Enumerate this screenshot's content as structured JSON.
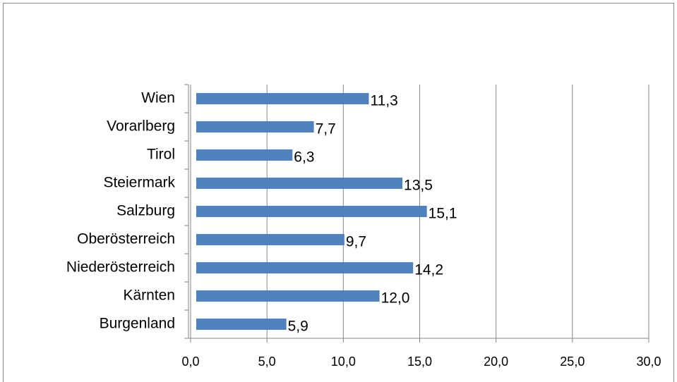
{
  "chart_data": {
    "type": "barh",
    "categories": [
      "Burgenland",
      "Kärnten",
      "Niederösterreich",
      "Oberösterreich",
      "Salzburg",
      "Steiermark",
      "Tirol",
      "Vorarlberg",
      "Wien"
    ],
    "values": [
      5.9,
      12.0,
      14.2,
      9.7,
      15.1,
      13.5,
      6.3,
      7.7,
      11.3
    ],
    "value_labels": [
      "5,9",
      "12,0",
      "14,2",
      "9,7",
      "15,1",
      "13,5",
      "6,3",
      "7,7",
      "11,3"
    ],
    "color": "#4f81bd",
    "xlim": [
      0,
      30
    ],
    "xticks": [
      {
        "value": 0,
        "label": "0,0"
      },
      {
        "value": 5,
        "label": "5,0"
      },
      {
        "value": 10,
        "label": "10,0"
      },
      {
        "value": 15,
        "label": "15,0"
      },
      {
        "value": 20,
        "label": "20,0"
      },
      {
        "value": 25,
        "label": "25,0"
      },
      {
        "value": 30,
        "label": "30,0"
      }
    ],
    "grid": true
  }
}
